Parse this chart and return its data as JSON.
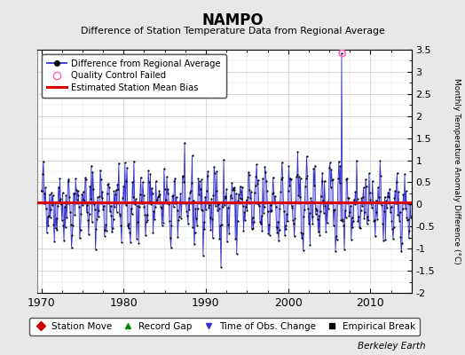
{
  "title": "NAMPO",
  "subtitle": "Difference of Station Temperature Data from Regional Average",
  "ylabel": "Monthly Temperature Anomaly Difference (°C)",
  "xlabel_years": [
    1970,
    1980,
    1990,
    2000,
    2010
  ],
  "xlim": [
    1969.5,
    2015.0
  ],
  "ylim": [
    -2.0,
    3.5
  ],
  "yticks": [
    -2,
    -1.5,
    -1,
    -0.5,
    0,
    0.5,
    1,
    1.5,
    2,
    2.5,
    3,
    3.5
  ],
  "bias_level": 0.05,
  "fig_bg_color": "#e8e8e8",
  "plot_bg_color": "#ffffff",
  "line_color": "#3333cc",
  "line_fill_color": "#9999ee",
  "bias_color": "#dd0000",
  "marker_color": "#000000",
  "qc_fail_color": "#ff66bb",
  "seed": 42,
  "num_years": 45,
  "start_year": 1970,
  "berkeley_earth_text": "Berkeley Earth",
  "legend1_entries": [
    {
      "label": "Difference from Regional Average"
    },
    {
      "label": "Quality Control Failed"
    },
    {
      "label": "Estimated Station Mean Bias"
    }
  ],
  "legend2_entries": [
    {
      "label": "Station Move",
      "color": "#cc0000",
      "marker": "D"
    },
    {
      "label": "Record Gap",
      "color": "#008800",
      "marker": "^"
    },
    {
      "label": "Time of Obs. Change",
      "color": "#3333cc",
      "marker": "v"
    },
    {
      "label": "Empirical Break",
      "color": "#000000",
      "marker": "s"
    }
  ],
  "qc_fail_points": [
    {
      "year": 2006.583,
      "value": 3.42
    }
  ]
}
